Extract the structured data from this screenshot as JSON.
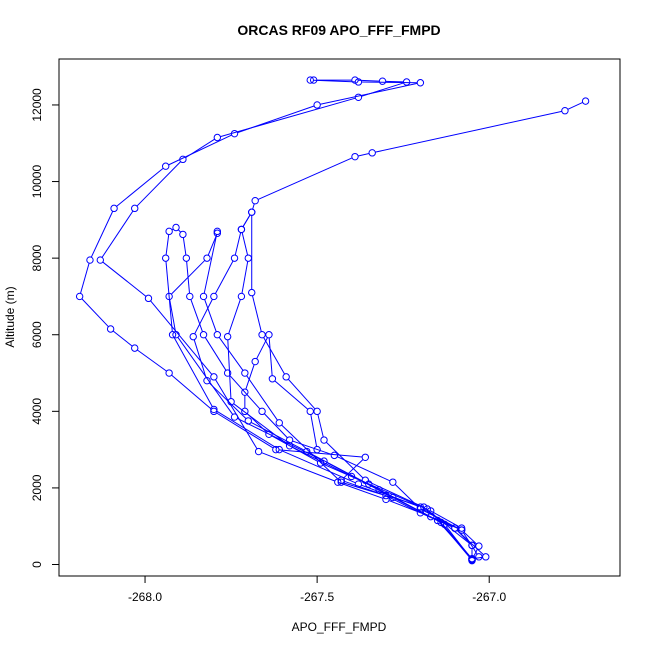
{
  "chart_data": {
    "type": "line",
    "title": "ORCAS RF09 APO_FFF_FMPD",
    "xlabel": "APO_FFF_FMPD",
    "ylabel": "Altitude (m)",
    "xlim": [
      -268.25,
      -266.62
    ],
    "ylim": [
      -300,
      13200
    ],
    "x_ticks": [
      -268.0,
      -267.5,
      -267.0
    ],
    "x_tick_labels": [
      "-268.0",
      "-267.5",
      "-267.0"
    ],
    "y_ticks": [
      0,
      2000,
      4000,
      6000,
      8000,
      10000,
      12000
    ],
    "y_tick_labels": [
      "0",
      "2000",
      "4000",
      "6000",
      "8000",
      "10000",
      "12000"
    ],
    "grid": false,
    "legend": "none",
    "series": [
      {
        "color": "#0000ff",
        "marker": "open-circle",
        "points": [
          [
            -267.05,
            100
          ],
          [
            -267.05,
            500
          ],
          [
            -267.1,
            950
          ],
          [
            -267.2,
            1350
          ],
          [
            -267.3,
            1800
          ],
          [
            -267.43,
            2200
          ],
          [
            -267.36,
            2800
          ],
          [
            -267.62,
            3000
          ],
          [
            -267.8,
            4000
          ],
          [
            -267.93,
            5000
          ],
          [
            -268.03,
            5650
          ],
          [
            -268.1,
            6150
          ],
          [
            -268.19,
            7000
          ],
          [
            -268.16,
            7950
          ],
          [
            -268.09,
            9300
          ],
          [
            -267.94,
            10400
          ],
          [
            -267.74,
            11250
          ],
          [
            -267.5,
            12000
          ],
          [
            -267.2,
            12580
          ],
          [
            -267.38,
            12600
          ],
          [
            -267.52,
            12650
          ]
        ]
      },
      {
        "color": "#0000ff",
        "marker": "open-circle",
        "points": [
          [
            -267.05,
            120
          ],
          [
            -267.03,
            480
          ],
          [
            -267.08,
            900
          ],
          [
            -267.17,
            1250
          ],
          [
            -267.3,
            1700
          ],
          [
            -267.44,
            2150
          ],
          [
            -267.67,
            2950
          ],
          [
            -267.8,
            4900
          ],
          [
            -267.99,
            6950
          ],
          [
            -268.13,
            7950
          ],
          [
            -268.03,
            9300
          ],
          [
            -267.89,
            10580
          ],
          [
            -267.79,
            11150
          ],
          [
            -267.38,
            12200
          ],
          [
            -267.24,
            12600
          ],
          [
            -267.31,
            12620
          ],
          [
            -267.39,
            12650
          ],
          [
            -267.51,
            12650
          ]
        ]
      },
      {
        "color": "#0000ff",
        "marker": "open-circle",
        "points": [
          [
            -267.05,
            150
          ],
          [
            -267.01,
            200
          ],
          [
            -267.1,
            950
          ],
          [
            -267.2,
            1500
          ],
          [
            -267.38,
            2100
          ],
          [
            -267.61,
            3000
          ],
          [
            -267.8,
            4050
          ],
          [
            -267.92,
            6000
          ],
          [
            -267.94,
            8000
          ],
          [
            -267.93,
            8700
          ],
          [
            -267.91,
            8800
          ],
          [
            -267.89,
            8620
          ],
          [
            -267.88,
            8000
          ],
          [
            -267.87,
            7000
          ],
          [
            -267.83,
            6000
          ],
          [
            -267.76,
            5000
          ],
          [
            -267.66,
            4000
          ],
          [
            -267.58,
            3250
          ],
          [
            -267.45,
            2850
          ],
          [
            -267.28,
            2150
          ],
          [
            -267.2,
            1450
          ],
          [
            -267.08,
            900
          ],
          [
            -267.03,
            200
          ]
        ]
      },
      {
        "color": "#0000ff",
        "marker": "open-circle",
        "points": [
          [
            -267.05,
            130
          ],
          [
            -267.13,
            1050
          ],
          [
            -267.28,
            1750
          ],
          [
            -267.48,
            2700
          ],
          [
            -267.74,
            3850
          ],
          [
            -267.91,
            6000
          ],
          [
            -267.93,
            7000
          ],
          [
            -267.82,
            8000
          ],
          [
            -267.79,
            8650
          ],
          [
            -267.79,
            8700
          ],
          [
            -267.83,
            7000
          ],
          [
            -267.79,
            6000
          ],
          [
            -267.71,
            5000
          ],
          [
            -267.61,
            3700
          ],
          [
            -267.43,
            2150
          ],
          [
            -267.19,
            1500
          ],
          [
            -267.05,
            500
          ]
        ]
      },
      {
        "color": "#0000ff",
        "marker": "open-circle",
        "points": [
          [
            -267.05,
            150
          ],
          [
            -267.15,
            1150
          ],
          [
            -267.32,
            1950
          ],
          [
            -267.53,
            2950
          ],
          [
            -267.7,
            3750
          ],
          [
            -267.82,
            4800
          ],
          [
            -267.86,
            5950
          ],
          [
            -267.8,
            7000
          ],
          [
            -267.74,
            8000
          ],
          [
            -267.72,
            8750
          ],
          [
            -267.69,
            9200
          ],
          [
            -267.68,
            9500
          ],
          [
            -267.39,
            10650
          ],
          [
            -267.34,
            10750
          ],
          [
            -266.78,
            11850
          ],
          [
            -266.72,
            12100
          ]
        ]
      },
      {
        "color": "#0000ff",
        "marker": "open-circle",
        "points": [
          [
            -267.05,
            110
          ],
          [
            -267.17,
            1400
          ],
          [
            -267.4,
            2300
          ],
          [
            -267.58,
            3100
          ],
          [
            -267.75,
            4250
          ],
          [
            -267.76,
            5950
          ],
          [
            -267.72,
            7000
          ],
          [
            -267.7,
            8000
          ],
          [
            -267.72,
            8750
          ],
          [
            -267.69,
            9200
          ],
          [
            -267.69,
            7100
          ],
          [
            -267.66,
            6000
          ],
          [
            -267.59,
            4900
          ],
          [
            -267.5,
            4000
          ],
          [
            -267.48,
            3250
          ],
          [
            -267.36,
            2200
          ],
          [
            -267.18,
            1450
          ],
          [
            -267.08,
            950
          ]
        ]
      },
      {
        "color": "#0000ff",
        "marker": "open-circle",
        "points": [
          [
            -267.05,
            150
          ],
          [
            -267.14,
            1100
          ],
          [
            -267.35,
            2100
          ],
          [
            -267.49,
            2650
          ],
          [
            -267.64,
            3400
          ],
          [
            -267.71,
            4000
          ],
          [
            -267.71,
            4500
          ],
          [
            -267.68,
            5300
          ],
          [
            -267.64,
            6000
          ],
          [
            -267.63,
            4850
          ],
          [
            -267.52,
            4000
          ],
          [
            -267.5,
            3000
          ]
        ]
      }
    ]
  }
}
